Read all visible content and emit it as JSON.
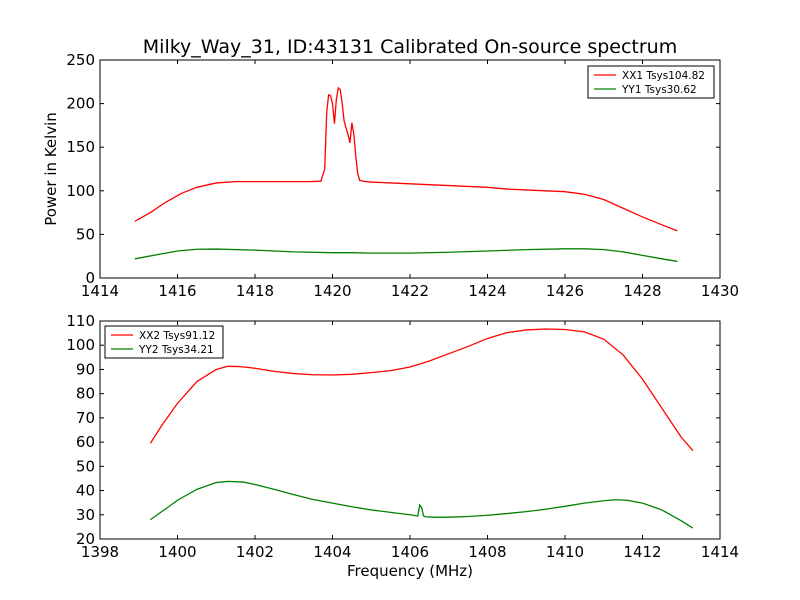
{
  "title": "Milky_Way_31, ID:43131 Calibrated On-source spectrum",
  "colors": {
    "red": "#ff0000",
    "green": "#008000",
    "axis": "#000000"
  },
  "chart_data": [
    {
      "type": "line",
      "title": "Milky_Way_31, ID:43131 Calibrated On-source spectrum",
      "xlabel": "",
      "ylabel": "Power in Kelvin",
      "xlim": [
        1414,
        1430
      ],
      "ylim": [
        0,
        250
      ],
      "xticks": [
        1414,
        1416,
        1418,
        1420,
        1422,
        1424,
        1426,
        1428,
        1430
      ],
      "yticks": [
        0,
        50,
        100,
        150,
        200,
        250
      ],
      "grid": false,
      "legend_position": "top-right",
      "series": [
        {
          "name": "XX1 Tsys104.82",
          "color": "#ff0000",
          "x": [
            1414.9,
            1415.3,
            1415.7,
            1416.1,
            1416.5,
            1417.0,
            1417.5,
            1418.0,
            1418.5,
            1419.0,
            1419.4,
            1419.7,
            1419.8,
            1419.85,
            1419.9,
            1419.95,
            1420.0,
            1420.05,
            1420.1,
            1420.15,
            1420.2,
            1420.25,
            1420.3,
            1420.35,
            1420.4,
            1420.45,
            1420.5,
            1420.55,
            1420.6,
            1420.65,
            1420.7,
            1420.8,
            1421.0,
            1421.5,
            1422.0,
            1422.5,
            1423.0,
            1423.5,
            1424.0,
            1424.5,
            1425.0,
            1425.5,
            1426.0,
            1426.5,
            1427.0,
            1427.5,
            1428.0,
            1428.5,
            1428.9
          ],
          "y": [
            65,
            75,
            87,
            97,
            104,
            109,
            110.5,
            110.5,
            110.5,
            110.5,
            110.5,
            111,
            125,
            190,
            210,
            209,
            200,
            177,
            205,
            218,
            216,
            200,
            180,
            172,
            165,
            155,
            178,
            165,
            140,
            120,
            112,
            111,
            110,
            109,
            108,
            107,
            106,
            105,
            104,
            102,
            101,
            100,
            99,
            96,
            90,
            80,
            70,
            61,
            54
          ]
        },
        {
          "name": "YY1 Tsys30.62",
          "color": "#008000",
          "x": [
            1414.9,
            1415.5,
            1416.0,
            1416.5,
            1417.0,
            1418.0,
            1419.0,
            1420.0,
            1420.5,
            1421.0,
            1422.0,
            1423.0,
            1424.0,
            1425.0,
            1426.0,
            1426.5,
            1427.0,
            1427.5,
            1428.0,
            1428.5,
            1428.9
          ],
          "y": [
            22,
            27,
            31,
            33,
            33.2,
            32,
            30,
            29,
            29,
            28.5,
            28.5,
            29.5,
            31,
            32.5,
            33.5,
            33.5,
            32.5,
            30,
            26,
            22,
            19
          ]
        }
      ]
    },
    {
      "type": "line",
      "title": "",
      "xlabel": "Frequency (MHz)",
      "ylabel": "",
      "xlim": [
        1398,
        1414
      ],
      "ylim": [
        20,
        110
      ],
      "xticks": [
        1398,
        1400,
        1402,
        1404,
        1406,
        1408,
        1410,
        1412,
        1414
      ],
      "yticks": [
        20,
        30,
        40,
        50,
        60,
        70,
        80,
        90,
        100,
        110
      ],
      "grid": false,
      "legend_position": "top-left",
      "series": [
        {
          "name": "XX2 Tsys91.12",
          "color": "#ff0000",
          "x": [
            1399.3,
            1399.6,
            1400.0,
            1400.5,
            1401.0,
            1401.3,
            1401.6,
            1402.0,
            1402.5,
            1403.0,
            1403.5,
            1404.0,
            1404.5,
            1405.0,
            1405.5,
            1406.0,
            1406.5,
            1407.0,
            1407.5,
            1408.0,
            1408.5,
            1409.0,
            1409.5,
            1410.0,
            1410.5,
            1411.0,
            1411.5,
            1412.0,
            1412.5,
            1413.0,
            1413.3
          ],
          "y": [
            59.5,
            67,
            76,
            85,
            90,
            91.3,
            91.2,
            90.5,
            89.2,
            88.3,
            87.8,
            87.7,
            88,
            88.7,
            89.5,
            91,
            93.5,
            96.5,
            99.5,
            102.8,
            105.2,
            106.3,
            106.7,
            106.5,
            105.5,
            102.5,
            96,
            86,
            74,
            62,
            56.5
          ]
        },
        {
          "name": "YY2 Tsys34.21",
          "color": "#008000",
          "x": [
            1399.3,
            1399.7,
            1400.0,
            1400.5,
            1401.0,
            1401.3,
            1401.7,
            1402.0,
            1402.5,
            1403.0,
            1403.5,
            1404.0,
            1404.5,
            1405.0,
            1405.5,
            1406.0,
            1406.2,
            1406.25,
            1406.3,
            1406.35,
            1406.4,
            1406.6,
            1407.0,
            1407.5,
            1408.0,
            1408.5,
            1409.0,
            1409.5,
            1410.0,
            1410.5,
            1411.0,
            1411.3,
            1411.6,
            1412.0,
            1412.5,
            1413.0,
            1413.3
          ],
          "y": [
            28,
            32.5,
            36,
            40.5,
            43.3,
            43.8,
            43.5,
            42.5,
            40.5,
            38.3,
            36.3,
            34.8,
            33.3,
            32,
            31,
            30,
            29.5,
            34,
            33,
            29.5,
            29.2,
            29,
            29,
            29.3,
            29.8,
            30.5,
            31.3,
            32.3,
            33.5,
            34.8,
            35.8,
            36.2,
            36,
            34.8,
            32,
            27.5,
            24.5
          ]
        }
      ]
    }
  ]
}
